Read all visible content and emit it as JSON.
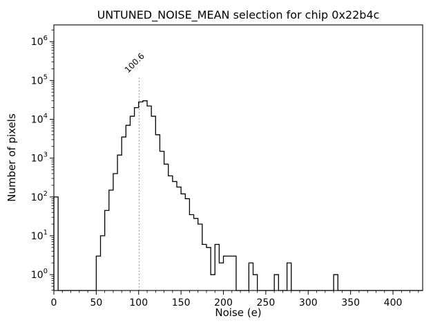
{
  "chart_data": {
    "type": "bar",
    "subtype": "step-histogram",
    "title": "UNTUNED_NOISE_MEAN selection for chip 0x22b4c",
    "xlabel": "Noise (e)",
    "ylabel": "Number of pixels",
    "x_scale": "linear",
    "y_scale": "log",
    "xlim": [
      0,
      435
    ],
    "ylim": [
      0.39,
      2700000
    ],
    "x_ticks": [
      0,
      50,
      100,
      150,
      200,
      250,
      300,
      350,
      400
    ],
    "x_minor_step": 10,
    "y_tick_exponents": [
      0,
      1,
      2,
      3,
      4,
      5,
      6
    ],
    "grid": false,
    "legend": "none",
    "line_color": "#000000",
    "bin_start": 0,
    "bin_width": 5,
    "counts": [
      100,
      0,
      0,
      0,
      0,
      0,
      0,
      0,
      0,
      0,
      3,
      10,
      45,
      150,
      400,
      1200,
      3500,
      7000,
      12000,
      20000,
      28000,
      30000,
      22000,
      12000,
      4000,
      1500,
      700,
      350,
      250,
      180,
      120,
      90,
      35,
      28,
      20,
      6,
      5,
      1,
      6,
      2,
      3,
      3,
      3,
      0,
      0,
      0,
      2,
      1,
      0,
      0,
      0,
      0,
      1,
      0,
      0,
      2,
      0,
      0,
      0,
      0,
      0,
      0,
      0,
      0,
      0,
      0,
      1,
      0,
      0,
      0,
      0,
      0,
      0,
      0,
      0,
      0,
      0,
      0,
      0,
      0,
      0,
      0,
      0,
      0,
      0,
      0,
      0
    ],
    "vline": {
      "x": 100.6,
      "label": "100.6",
      "top_value": 130000,
      "color": "#888888",
      "style": "dotted"
    }
  }
}
